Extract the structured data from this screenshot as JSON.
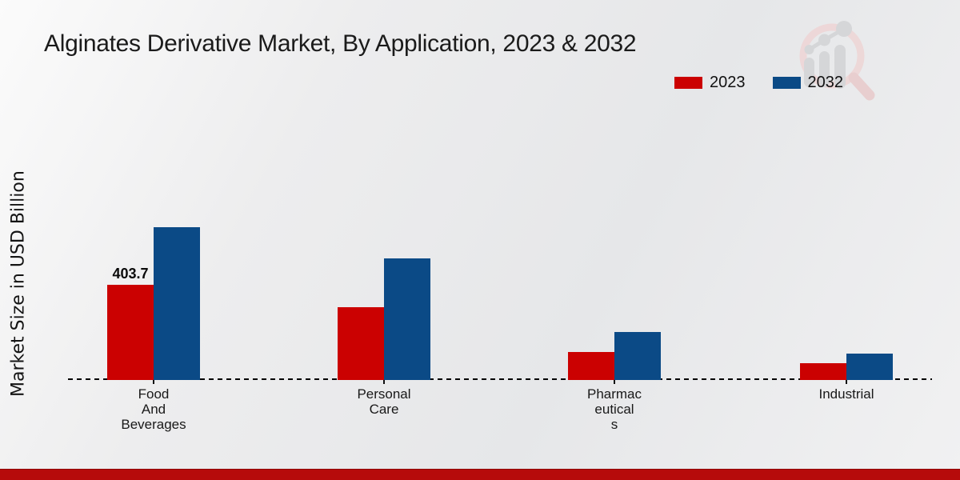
{
  "title": "Alginates Derivative Market, By Application, 2023 & 2032",
  "y_axis_label": "Market Size in USD Billion",
  "legend": {
    "items": [
      {
        "label": "2023",
        "color": "#cb0101"
      },
      {
        "label": "2032",
        "color": "#0b4a86"
      }
    ]
  },
  "footer": {
    "bar_color": "#b60b0b"
  },
  "logo": {
    "name": "growth-magnifier-watermark-logo"
  },
  "chart_data": {
    "type": "bar",
    "categories": [
      "Food\nAnd\nBeverages",
      "Personal\nCare",
      "Pharmac\neutical\ns",
      "Industrial"
    ],
    "series": [
      {
        "name": "2023",
        "color": "#cb0101",
        "values": [
          403.7,
          309,
          119,
          71
        ]
      },
      {
        "name": "2032",
        "color": "#0b4a86",
        "values": [
          648,
          516,
          204,
          112
        ]
      }
    ],
    "annotations": [
      {
        "series": "2023",
        "category_index": 0,
        "text": "403.7"
      }
    ],
    "title": "Alginates Derivative Market, By Application, 2023 & 2032",
    "xlabel": "",
    "ylabel": "Market Size in USD Billion",
    "ylim": [
      0,
      700
    ],
    "grid": false,
    "legend_position": "top-right",
    "baseline_style": "dashed"
  }
}
